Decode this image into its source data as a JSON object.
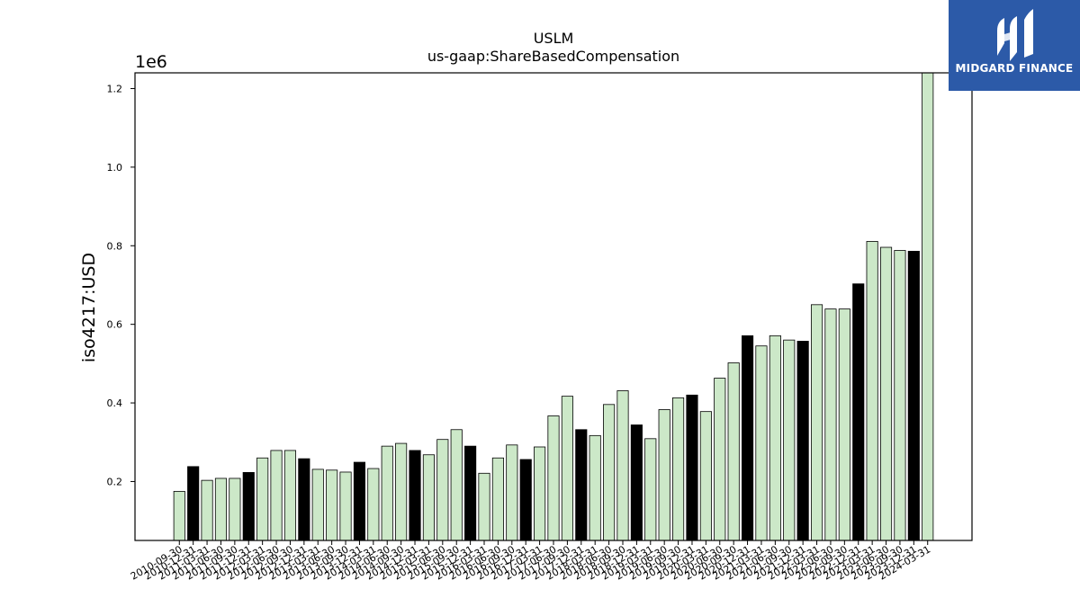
{
  "logo": {
    "text": "MIDGARD FINANCE",
    "color": "#2c5aa8"
  },
  "chart_data": {
    "type": "bar",
    "title": "USLM",
    "subtitle": "us-gaap:ShareBasedCompensation",
    "ylabel": "iso4217:USD",
    "xlabel": "",
    "y_offset_label": "1e6",
    "ylim": [
      50000,
      1240000
    ],
    "yticks": [
      0.2,
      0.4,
      0.6,
      0.8,
      1.0,
      1.2
    ],
    "grid": false,
    "colors": {
      "fill": "#cce8c8",
      "highlight": "#000000",
      "edge": "#000000"
    },
    "categories": [
      "2010-09-30",
      "2010-12-31",
      "2011-03-31",
      "2011-06-30",
      "2011-09-30",
      "2011-12-31",
      "2012-03-31",
      "2012-06-30",
      "2012-09-30",
      "2012-12-31",
      "2013-03-31",
      "2013-06-30",
      "2013-09-30",
      "2013-12-31",
      "2014-03-31",
      "2014-06-30",
      "2014-09-30",
      "2014-12-31",
      "2015-03-31",
      "2015-06-30",
      "2015-09-30",
      "2015-12-31",
      "2016-03-31",
      "2016-06-30",
      "2016-09-30",
      "2016-12-31",
      "2017-03-31",
      "2017-06-30",
      "2017-09-30",
      "2017-12-31",
      "2018-03-31",
      "2018-06-30",
      "2018-09-30",
      "2018-12-31",
      "2019-03-31",
      "2019-06-30",
      "2019-09-30",
      "2019-12-31",
      "2020-03-31",
      "2020-06-30",
      "2020-09-30",
      "2020-12-31",
      "2021-03-31",
      "2021-06-30",
      "2021-09-30",
      "2021-12-31",
      "2022-03-31",
      "2022-06-30",
      "2022-09-30",
      "2022-12-31",
      "2023-03-31",
      "2023-06-30",
      "2023-09-30",
      "2023-12-31",
      "2024-03-31"
    ],
    "values": [
      175000,
      238000,
      203000,
      208000,
      208000,
      223000,
      260000,
      279000,
      279000,
      258000,
      231000,
      229000,
      224000,
      249000,
      233000,
      290000,
      297000,
      279000,
      268000,
      307000,
      332000,
      290000,
      221000,
      260000,
      293000,
      256000,
      288000,
      367000,
      417000,
      332000,
      317000,
      396000,
      431000,
      344000,
      309000,
      383000,
      413000,
      420000,
      378000,
      463000,
      502000,
      571000,
      545000,
      571000,
      560000,
      557000,
      650000,
      639000,
      639000,
      703000,
      811000,
      796000,
      788000,
      786000,
      1240000
    ],
    "highlight": [
      false,
      true,
      false,
      false,
      false,
      true,
      false,
      false,
      false,
      true,
      false,
      false,
      false,
      true,
      false,
      false,
      false,
      true,
      false,
      false,
      false,
      true,
      false,
      false,
      false,
      true,
      false,
      false,
      false,
      true,
      false,
      false,
      false,
      true,
      false,
      false,
      false,
      true,
      false,
      false,
      false,
      true,
      false,
      false,
      false,
      true,
      false,
      false,
      false,
      true,
      false,
      false,
      false,
      true,
      false
    ]
  }
}
